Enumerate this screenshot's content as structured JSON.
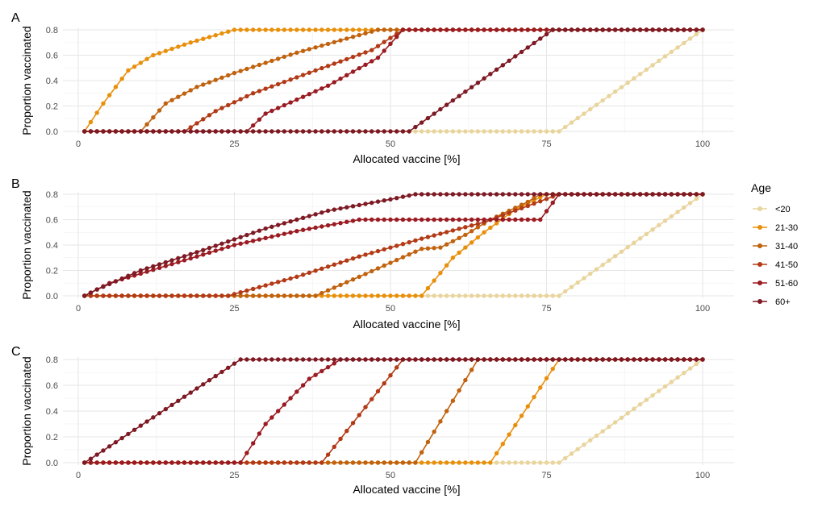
{
  "legend": {
    "title": "Age",
    "groups": [
      {
        "label": "<20",
        "color": "#E8D49C"
      },
      {
        "label": "21-30",
        "color": "#E8900C"
      },
      {
        "label": "31-40",
        "color": "#C0620E"
      },
      {
        "label": "41-50",
        "color": "#B23A16"
      },
      {
        "label": "51-60",
        "color": "#9A1B22"
      },
      {
        "label": "60+",
        "color": "#7E1A24"
      }
    ]
  },
  "chart_data": [
    {
      "panel": "A",
      "type": "line",
      "xlabel": "Allocated vaccine [%]",
      "ylabel": "Proportion vaccinated",
      "xlim": [
        0,
        100
      ],
      "ylim": [
        0,
        0.8
      ],
      "xticks": [
        0,
        25,
        50,
        75,
        100
      ],
      "yticks": [
        0.0,
        0.2,
        0.4,
        0.6,
        0.8
      ],
      "grid": true,
      "point_step": 1,
      "x_range": [
        1,
        100
      ],
      "series": [
        {
          "group": "<20",
          "points": [
            [
              1,
              0
            ],
            [
              77,
              0
            ],
            [
              100,
              0.8
            ]
          ]
        },
        {
          "group": "21-30",
          "points": [
            [
              1,
              0
            ],
            [
              4,
              0.22
            ],
            [
              8,
              0.48
            ],
            [
              12,
              0.6
            ],
            [
              18,
              0.7
            ],
            [
              25,
              0.8
            ],
            [
              100,
              0.8
            ]
          ]
        },
        {
          "group": "31-40",
          "points": [
            [
              1,
              0
            ],
            [
              10,
              0
            ],
            [
              14,
              0.22
            ],
            [
              19,
              0.35
            ],
            [
              25,
              0.46
            ],
            [
              35,
              0.62
            ],
            [
              48,
              0.8
            ],
            [
              100,
              0.8
            ]
          ]
        },
        {
          "group": "41-50",
          "points": [
            [
              1,
              0
            ],
            [
              17,
              0
            ],
            [
              22,
              0.16
            ],
            [
              28,
              0.3
            ],
            [
              38,
              0.48
            ],
            [
              47,
              0.64
            ],
            [
              52,
              0.8
            ],
            [
              100,
              0.8
            ]
          ]
        },
        {
          "group": "51-60",
          "points": [
            [
              1,
              0
            ],
            [
              27,
              0
            ],
            [
              30,
              0.14
            ],
            [
              40,
              0.36
            ],
            [
              48,
              0.58
            ],
            [
              52,
              0.8
            ],
            [
              100,
              0.8
            ]
          ]
        },
        {
          "group": "60+",
          "points": [
            [
              1,
              0
            ],
            [
              53,
              0
            ],
            [
              76,
              0.8
            ],
            [
              100,
              0.8
            ]
          ]
        }
      ]
    },
    {
      "panel": "B",
      "type": "line",
      "xlabel": "Allocated vaccine [%]",
      "ylabel": "Proportion vaccinated",
      "xlim": [
        0,
        100
      ],
      "ylim": [
        0,
        0.8
      ],
      "xticks": [
        0,
        25,
        50,
        75,
        100
      ],
      "yticks": [
        0.0,
        0.2,
        0.4,
        0.6,
        0.8
      ],
      "grid": true,
      "point_step": 1,
      "x_range": [
        1,
        100
      ],
      "series": [
        {
          "group": "<20",
          "points": [
            [
              1,
              0
            ],
            [
              77,
              0
            ],
            [
              100,
              0.8
            ]
          ]
        },
        {
          "group": "21-30",
          "points": [
            [
              1,
              0
            ],
            [
              55,
              0
            ],
            [
              60,
              0.3
            ],
            [
              65,
              0.5
            ],
            [
              70,
              0.68
            ],
            [
              75,
              0.8
            ],
            [
              100,
              0.8
            ]
          ]
        },
        {
          "group": "31-40",
          "points": [
            [
              1,
              0
            ],
            [
              38,
              0
            ],
            [
              45,
              0.15
            ],
            [
              55,
              0.37
            ],
            [
              58,
              0.38
            ],
            [
              62,
              0.48
            ],
            [
              66,
              0.6
            ],
            [
              72,
              0.74
            ],
            [
              74,
              0.8
            ],
            [
              100,
              0.8
            ]
          ]
        },
        {
          "group": "41-50",
          "points": [
            [
              1,
              0
            ],
            [
              24,
              0
            ],
            [
              35,
              0.15
            ],
            [
              45,
              0.31
            ],
            [
              55,
              0.45
            ],
            [
              65,
              0.58
            ],
            [
              77,
              0.8
            ],
            [
              100,
              0.8
            ]
          ]
        },
        {
          "group": "51-60",
          "points": [
            [
              1,
              0
            ],
            [
              5,
              0.1
            ],
            [
              15,
              0.25
            ],
            [
              25,
              0.4
            ],
            [
              35,
              0.51
            ],
            [
              45,
              0.6
            ],
            [
              55,
              0.6
            ],
            [
              74,
              0.6
            ],
            [
              77,
              0.8
            ],
            [
              100,
              0.8
            ]
          ]
        },
        {
          "group": "60+",
          "points": [
            [
              1,
              0
            ],
            [
              3,
              0.05
            ],
            [
              10,
              0.2
            ],
            [
              20,
              0.36
            ],
            [
              30,
              0.53
            ],
            [
              40,
              0.67
            ],
            [
              50,
              0.76
            ],
            [
              54,
              0.8
            ],
            [
              100,
              0.8
            ]
          ]
        }
      ]
    },
    {
      "panel": "C",
      "type": "line",
      "xlabel": "Allocated vaccine [%]",
      "ylabel": "Proportion vaccinated",
      "xlim": [
        0,
        100
      ],
      "ylim": [
        0,
        0.8
      ],
      "xticks": [
        0,
        25,
        50,
        75,
        100
      ],
      "yticks": [
        0.0,
        0.2,
        0.4,
        0.6,
        0.8
      ],
      "grid": true,
      "point_step": 1,
      "x_range": [
        1,
        100
      ],
      "series": [
        {
          "group": "<20",
          "points": [
            [
              1,
              0
            ],
            [
              77,
              0
            ],
            [
              100,
              0.8
            ]
          ]
        },
        {
          "group": "21-30",
          "points": [
            [
              1,
              0
            ],
            [
              66,
              0
            ],
            [
              77,
              0.8
            ],
            [
              100,
              0.8
            ]
          ]
        },
        {
          "group": "31-40",
          "points": [
            [
              1,
              0
            ],
            [
              54,
              0
            ],
            [
              64,
              0.8
            ],
            [
              100,
              0.8
            ]
          ]
        },
        {
          "group": "41-50",
          "points": [
            [
              1,
              0
            ],
            [
              39,
              0
            ],
            [
              52,
              0.8
            ],
            [
              100,
              0.8
            ]
          ]
        },
        {
          "group": "51-60",
          "points": [
            [
              1,
              0
            ],
            [
              26,
              0
            ],
            [
              30,
              0.3
            ],
            [
              37,
              0.65
            ],
            [
              42,
              0.8
            ],
            [
              100,
              0.8
            ]
          ]
        },
        {
          "group": "60+",
          "points": [
            [
              1,
              0
            ],
            [
              2,
              0.03
            ],
            [
              26,
              0.8
            ],
            [
              100,
              0.8
            ]
          ]
        }
      ]
    }
  ]
}
